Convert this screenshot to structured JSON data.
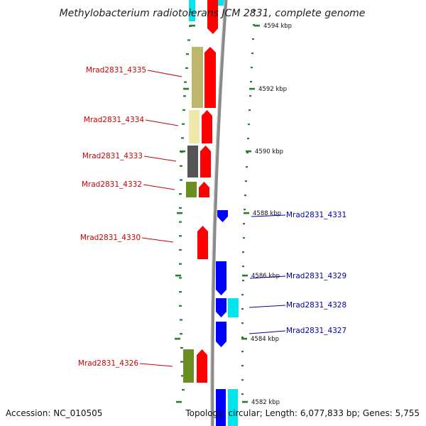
{
  "title": "Methylobacterium radiotolerans JCM 2831, complete genome",
  "footer": {
    "accession": "Accession: NC_010505",
    "topology": "Topology: circular; Length: 6,077,833 bp; Genes: 5,755"
  },
  "colors": {
    "backbone": "#8a8a8a",
    "tick": "#2a7d2a",
    "label_forward": "#cc0000",
    "label_reverse": "#0000aa",
    "cds_forward": "#ff0000",
    "cds_reverse": "#0000ff",
    "cog_tan": "#bdb76b",
    "cog_pale": "#eee8aa",
    "cog_gray": "#555555",
    "cog_olive": "#6b8e23",
    "cog_cyan": "#00e5ee"
  },
  "ticks": [
    {
      "label": "4594 kbp"
    },
    {
      "label": "4592 kbp"
    },
    {
      "label": "4590 kbp"
    },
    {
      "label": "4588 kbp"
    },
    {
      "label": "4586 kbp"
    },
    {
      "label": "4584 kbp"
    },
    {
      "label": "4582 kbp"
    }
  ],
  "genes": [
    {
      "name": "Mrad2831_4335",
      "strand": "forward",
      "cog": "cog_tan"
    },
    {
      "name": "Mrad2831_4334",
      "strand": "forward",
      "cog": "cog_pale"
    },
    {
      "name": "Mrad2831_4333",
      "strand": "forward",
      "cog": "cog_gray"
    },
    {
      "name": "Mrad2831_4332",
      "strand": "forward",
      "cog": "cog_olive"
    },
    {
      "name": "Mrad2831_4331",
      "strand": "reverse",
      "cog": null
    },
    {
      "name": "Mrad2831_4330",
      "strand": "forward",
      "cog": null
    },
    {
      "name": "Mrad2831_4329",
      "strand": "reverse",
      "cog": null
    },
    {
      "name": "Mrad2831_4328",
      "strand": "reverse",
      "cog": "cog_cyan"
    },
    {
      "name": "Mrad2831_4327",
      "strand": "reverse",
      "cog": null
    },
    {
      "name": "Mrad2831_4326",
      "strand": "forward",
      "cog": "cog_olive"
    }
  ]
}
